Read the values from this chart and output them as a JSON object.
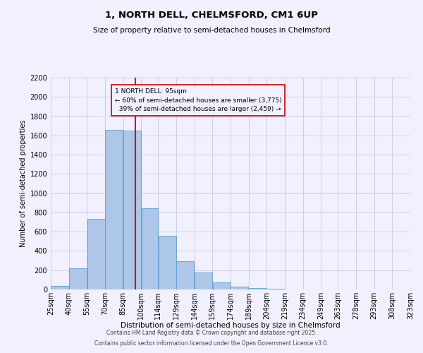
{
  "title": "1, NORTH DELL, CHELMSFORD, CM1 6UP",
  "subtitle": "Size of property relative to semi-detached houses in Chelmsford",
  "xlabel": "Distribution of semi-detached houses by size in Chelmsford",
  "ylabel": "Number of semi-detached properties",
  "footnote1": "Contains HM Land Registry data © Crown copyright and database right 2025.",
  "footnote2": "Contains public sector information licensed under the Open Government Licence v3.0.",
  "bin_labels": [
    "25sqm",
    "40sqm",
    "55sqm",
    "70sqm",
    "85sqm",
    "100sqm",
    "114sqm",
    "129sqm",
    "144sqm",
    "159sqm",
    "174sqm",
    "189sqm",
    "204sqm",
    "219sqm",
    "234sqm",
    "249sqm",
    "263sqm",
    "278sqm",
    "293sqm",
    "308sqm",
    "323sqm"
  ],
  "bin_edges": [
    25,
    40,
    55,
    70,
    85,
    100,
    114,
    129,
    144,
    159,
    174,
    189,
    204,
    219,
    234,
    249,
    263,
    278,
    293,
    308,
    323
  ],
  "bar_heights": [
    40,
    220,
    730,
    1660,
    1650,
    840,
    555,
    295,
    175,
    70,
    30,
    15,
    5,
    3,
    0,
    0,
    0,
    0,
    0,
    0
  ],
  "bar_color": "#aec6e8",
  "bar_edge_color": "#5a9fd4",
  "property_value": 95,
  "property_label": "1 NORTH DELL: 95sqm",
  "smaller_pct": 60,
  "smaller_count": 3775,
  "larger_pct": 39,
  "larger_count": 2459,
  "vline_color": "#cc0000",
  "ylim": [
    0,
    2200
  ],
  "yticks": [
    0,
    200,
    400,
    600,
    800,
    1000,
    1200,
    1400,
    1600,
    1800,
    2000,
    2200
  ],
  "background_color": "#f0f0ff",
  "grid_color": "#c8c8e0",
  "annotation_box_edge": "#cc0000",
  "title_fontsize": 9.5,
  "subtitle_fontsize": 7.5,
  "xlabel_fontsize": 7.5,
  "ylabel_fontsize": 7.0,
  "tick_fontsize": 7.0,
  "footnote_fontsize": 5.5
}
